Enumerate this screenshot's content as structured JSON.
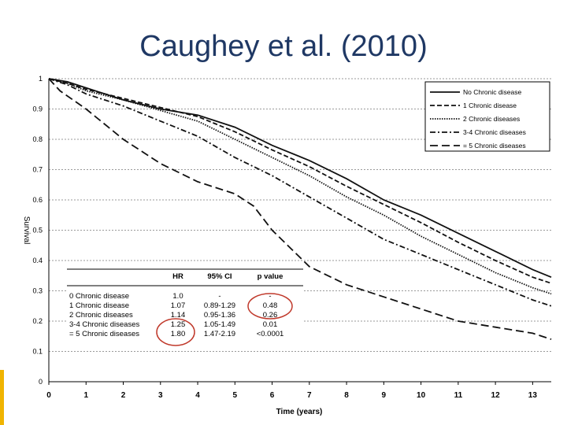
{
  "slide": {
    "title": "Caughey et al. (2010)"
  },
  "colors": {
    "title": "#1f3864",
    "accent": "#f0b400",
    "line": "#111111",
    "annotation": "#c0392b"
  },
  "chart_data": {
    "type": "line",
    "title": "",
    "xlabel": "Time (years)",
    "ylabel": "Survival",
    "xlim": [
      0,
      13.5
    ],
    "ylim": [
      0,
      1
    ],
    "xticks": [
      "0",
      "1",
      "2",
      "3",
      "4",
      "5",
      "6",
      "7",
      "8",
      "9",
      "10",
      "11",
      "12",
      "13"
    ],
    "yticks": [
      "0",
      "0.1",
      "0.2",
      "0.3",
      "0.4",
      "0.5",
      "0.6",
      "0.7",
      "0.8",
      "0.9",
      "1"
    ],
    "grid": true,
    "legend_position": "top-right",
    "series": [
      {
        "name": "No Chronic disease",
        "dash": "solid",
        "points": [
          [
            0,
            1
          ],
          [
            0.5,
            0.99
          ],
          [
            1,
            0.97
          ],
          [
            2,
            0.93
          ],
          [
            3,
            0.9
          ],
          [
            4,
            0.88
          ],
          [
            5,
            0.84
          ],
          [
            6,
            0.78
          ],
          [
            7,
            0.73
          ],
          [
            8,
            0.67
          ],
          [
            9,
            0.6
          ],
          [
            10,
            0.55
          ],
          [
            11,
            0.49
          ],
          [
            12,
            0.43
          ],
          [
            13,
            0.37
          ],
          [
            13.5,
            0.345
          ]
        ]
      },
      {
        "name": "1 Chronic disease",
        "dash": "dashed",
        "points": [
          [
            0,
            1
          ],
          [
            0.5,
            0.985
          ],
          [
            1,
            0.965
          ],
          [
            2,
            0.935
          ],
          [
            3,
            0.905
          ],
          [
            4,
            0.875
          ],
          [
            5,
            0.825
          ],
          [
            6,
            0.765
          ],
          [
            7,
            0.71
          ],
          [
            8,
            0.645
          ],
          [
            9,
            0.585
          ],
          [
            10,
            0.525
          ],
          [
            11,
            0.46
          ],
          [
            12,
            0.4
          ],
          [
            13,
            0.345
          ],
          [
            13.5,
            0.325
          ]
        ]
      },
      {
        "name": "2 Chronic diseases",
        "dash": "dotted",
        "points": [
          [
            0,
            1
          ],
          [
            0.5,
            0.985
          ],
          [
            1,
            0.96
          ],
          [
            2,
            0.93
          ],
          [
            3,
            0.895
          ],
          [
            4,
            0.86
          ],
          [
            5,
            0.8
          ],
          [
            6,
            0.74
          ],
          [
            7,
            0.68
          ],
          [
            8,
            0.61
          ],
          [
            9,
            0.55
          ],
          [
            10,
            0.48
          ],
          [
            11,
            0.42
          ],
          [
            12,
            0.36
          ],
          [
            13,
            0.31
          ],
          [
            13.5,
            0.29
          ]
        ]
      },
      {
        "name": "3-4 Chronic diseases",
        "dash": "dashdot",
        "points": [
          [
            0,
            1
          ],
          [
            0.5,
            0.98
          ],
          [
            1,
            0.95
          ],
          [
            2,
            0.91
          ],
          [
            3,
            0.86
          ],
          [
            4,
            0.81
          ],
          [
            5,
            0.74
          ],
          [
            6,
            0.68
          ],
          [
            7,
            0.61
          ],
          [
            8,
            0.54
          ],
          [
            9,
            0.47
          ],
          [
            10,
            0.42
          ],
          [
            11,
            0.37
          ],
          [
            12,
            0.32
          ],
          [
            13,
            0.27
          ],
          [
            13.5,
            0.25
          ]
        ]
      },
      {
        "name": "= 5 Chronic diseases",
        "dash": "longdash",
        "points": [
          [
            0,
            1
          ],
          [
            0.3,
            0.96
          ],
          [
            1,
            0.9
          ],
          [
            2,
            0.8
          ],
          [
            3,
            0.72
          ],
          [
            4,
            0.66
          ],
          [
            5,
            0.62
          ],
          [
            5.5,
            0.58
          ],
          [
            6,
            0.5
          ],
          [
            6.5,
            0.44
          ],
          [
            7,
            0.38
          ],
          [
            8,
            0.32
          ],
          [
            9,
            0.28
          ],
          [
            10,
            0.24
          ],
          [
            11,
            0.2
          ],
          [
            12,
            0.18
          ],
          [
            13,
            0.16
          ],
          [
            13.5,
            0.14
          ]
        ]
      }
    ],
    "table": {
      "headers": [
        "",
        "HR",
        "95% CI",
        "p value"
      ],
      "rows": [
        [
          "0 Chronic disease",
          "1.0",
          "-",
          "-"
        ],
        [
          "1 Chronic disease",
          "1.07",
          "0.89-1.29",
          "0.48"
        ],
        [
          "2 Chronic diseases",
          "1.14",
          "0.95-1.36",
          "0.26"
        ],
        [
          "3-4 Chronic diseases",
          "1.25",
          "1.05-1.49",
          "0.01"
        ],
        [
          "= 5 Chronic diseases",
          "1.80",
          "1.47-2.19",
          "<0.0001"
        ]
      ]
    }
  }
}
